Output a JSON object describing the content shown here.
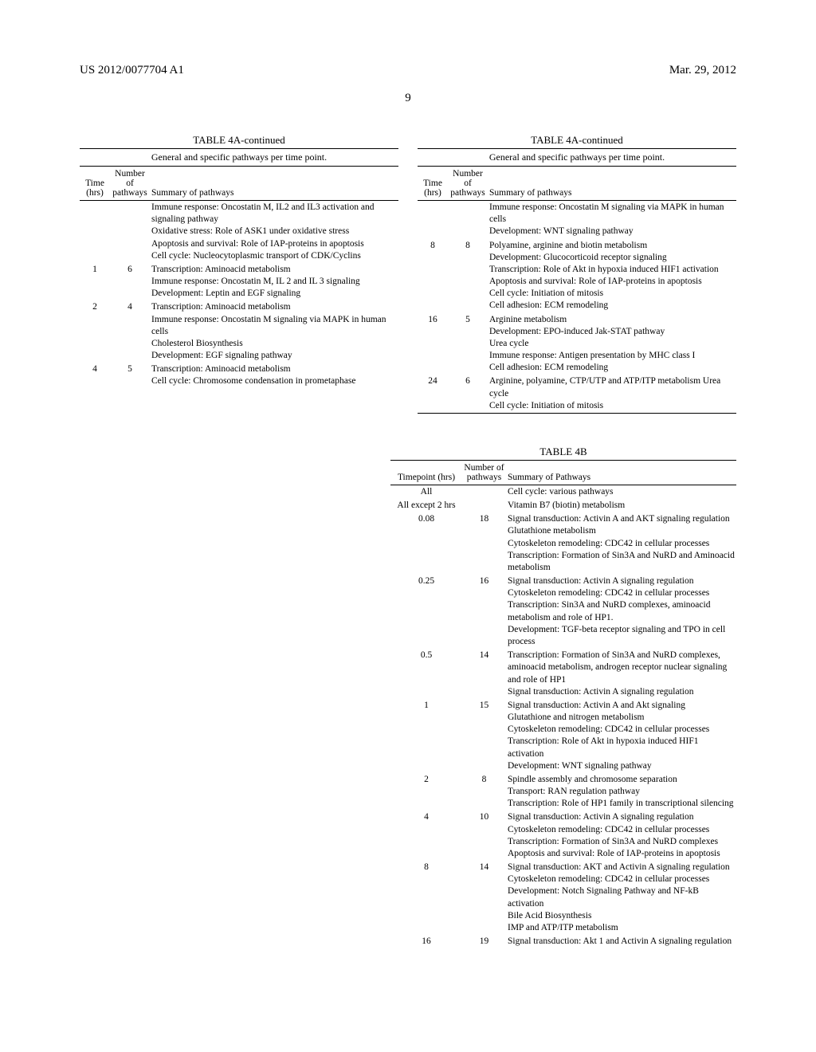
{
  "header": {
    "pub_number": "US 2012/0077704 A1",
    "pub_date": "Mar. 29, 2012"
  },
  "page_number": "9",
  "table4a": {
    "title": "TABLE 4A-continued",
    "caption": "General and specific pathways per time point.",
    "headers": {
      "time": "Time (hrs)",
      "num": "Number of pathways",
      "summary": "Summary of pathways"
    },
    "left_rows": [
      {
        "time": "",
        "num": "",
        "summary": "Immune response: Oncostatin M, IL2 and IL3 activation and signaling pathway\nOxidative stress: Role of ASK1 under oxidative stress\nApoptosis and survival: Role of IAP-proteins in apoptosis\nCell cycle: Nucleocytoplasmic transport of CDK/Cyclins"
      },
      {
        "time": "1",
        "num": "6",
        "summary": "Transcription: Aminoacid metabolism\nImmune response: Oncostatin M, IL 2 and IL 3 signaling\nDevelopment: Leptin and EGF signaling"
      },
      {
        "time": "2",
        "num": "4",
        "summary": "Transcription: Aminoacid metabolism\nImmune response: Oncostatin M signaling via MAPK in human cells\nCholesterol Biosynthesis\nDevelopment: EGF signaling pathway"
      },
      {
        "time": "4",
        "num": "5",
        "summary": "Transcription: Aminoacid metabolism\nCell cycle: Chromosome condensation in prometaphase"
      }
    ],
    "right_rows": [
      {
        "time": "",
        "num": "",
        "summary": "Immune response: Oncostatin M signaling via MAPK in human cells\nDevelopment: WNT signaling pathway"
      },
      {
        "time": "8",
        "num": "8",
        "summary": "Polyamine, arginine and biotin metabolism\nDevelopment: Glucocorticoid receptor signaling\nTranscription: Role of Akt in hypoxia induced HIF1 activation\nApoptosis and survival: Role of IAP-proteins in apoptosis\nCell cycle: Initiation of mitosis\nCell adhesion: ECM remodeling"
      },
      {
        "time": "16",
        "num": "5",
        "summary": "Arginine metabolism\nDevelopment: EPO-induced Jak-STAT pathway\nUrea cycle\nImmune response: Antigen presentation by MHC class I\nCell adhesion: ECM remodeling"
      },
      {
        "time": "24",
        "num": "6",
        "summary": "Arginine, polyamine, CTP/UTP and ATP/ITP metabolism Urea cycle\nCell cycle: Initiation of mitosis"
      }
    ]
  },
  "table4b": {
    "title": "TABLE 4B",
    "headers": {
      "time": "Timepoint (hrs)",
      "num": "Number of pathways",
      "summary": "Summary of Pathways"
    },
    "rows": [
      {
        "time": "All",
        "num": "",
        "summary": "Cell cycle: various pathways"
      },
      {
        "time": "All except 2 hrs",
        "num": "",
        "summary": "Vitamin B7 (biotin) metabolism"
      },
      {
        "time": "0.08",
        "num": "18",
        "summary": "Signal transduction: Activin A and AKT signaling regulation\nGlutathione metabolism\nCytoskeleton remodeling: CDC42 in cellular processes\nTranscription: Formation of Sin3A and NuRD and Aminoacid metabolism"
      },
      {
        "time": "0.25",
        "num": "16",
        "summary": "Signal transduction: Activin A signaling regulation\nCytoskeleton remodeling: CDC42 in cellular processes\nTranscription: Sin3A and NuRD complexes, aminoacid metabolism and role of HP1.\nDevelopment: TGF-beta receptor signaling and TPO in cell process"
      },
      {
        "time": "0.5",
        "num": "14",
        "summary": "Transcription: Formation of Sin3A and NuRD complexes, aminoacid metabolism, androgen receptor nuclear signaling and role of HP1\nSignal transduction: Activin A signaling regulation"
      },
      {
        "time": "1",
        "num": "15",
        "summary": "Signal transduction: Activin A and Akt signaling\nGlutathione and nitrogen metabolism\nCytoskeleton remodeling: CDC42 in cellular processes\nTranscription: Role of Akt in hypoxia induced HIF1 activation\nDevelopment: WNT signaling pathway"
      },
      {
        "time": "2",
        "num": "8",
        "summary": "Spindle assembly and chromosome separation\nTransport: RAN regulation pathway\nTranscription: Role of HP1 family in transcriptional silencing"
      },
      {
        "time": "4",
        "num": "10",
        "summary": "Signal transduction: Activin A signaling regulation\nCytoskeleton remodeling: CDC42 in cellular processes\nTranscription: Formation of Sin3A and NuRD complexes\nApoptosis and survival: Role of IAP-proteins in apoptosis"
      },
      {
        "time": "8",
        "num": "14",
        "summary": "Signal transduction: AKT and Activin A signaling regulation\nCytoskeleton remodeling: CDC42 in cellular processes\nDevelopment: Notch Signaling Pathway and NF-kB activation\nBile Acid Biosynthesis\nIMP and ATP/ITP metabolism"
      },
      {
        "time": "16",
        "num": "19",
        "summary": "Signal transduction: Akt 1 and Activin A signaling regulation"
      }
    ]
  }
}
